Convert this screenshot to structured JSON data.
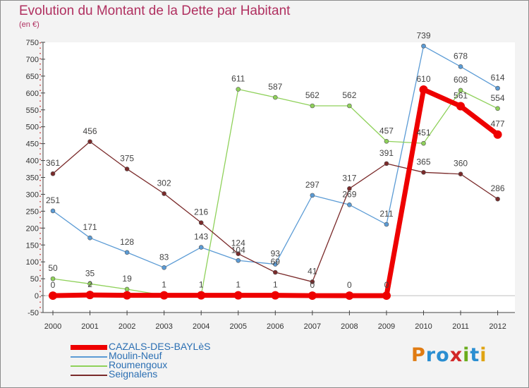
{
  "title": "Evolution du Montant de la Dette par Habitant",
  "subtitle": "(en €)",
  "logo": {
    "text": "Proxiti",
    "letter_colors": [
      "#e07b12",
      "#2a8ed1",
      "#2a8ed1",
      "#d22828",
      "#6aac1c",
      "#2a8ed1",
      "#e0a412"
    ]
  },
  "chart_data": {
    "type": "line",
    "title": "Evolution du Montant de la Dette par Habitant",
    "ylabel": "(en €)",
    "xlabel": "",
    "x": [
      "2000",
      "2001",
      "2002",
      "2003",
      "2004",
      "2005",
      "2006",
      "2007",
      "2008",
      "2009",
      "2010",
      "2011",
      "2012"
    ],
    "ylim": [
      -50,
      750
    ],
    "yticks": [
      -50,
      0,
      50,
      100,
      150,
      200,
      250,
      300,
      350,
      400,
      450,
      500,
      550,
      600,
      650,
      700,
      750
    ],
    "grid": false,
    "legend_position": "bottom-left",
    "series": [
      {
        "name": "CAZALS-DES-BAYLèS",
        "color": "#ee0000",
        "emphasis": true,
        "values": [
          0,
          2,
          1,
          1,
          1,
          1,
          1,
          0,
          0,
          0,
          610,
          561,
          477
        ],
        "labels": [
          "0",
          "2",
          "",
          "1",
          "1",
          "1",
          "1",
          "0",
          "0",
          "0",
          "610",
          "561",
          "477"
        ]
      },
      {
        "name": "Moulin-Neuf",
        "color": "#5b9bd5",
        "values": [
          251,
          171,
          128,
          83,
          143,
          104,
          93,
          297,
          269,
          211,
          739,
          678,
          614
        ],
        "labels": [
          "251",
          "171",
          "128",
          "83",
          "143",
          "104",
          "93",
          "297",
          "269",
          "211",
          "739",
          "678",
          "614"
        ]
      },
      {
        "name": "Roumengoux",
        "color": "#8fd15a",
        "values": [
          50,
          35,
          19,
          1,
          1,
          611,
          587,
          562,
          562,
          457,
          451,
          608,
          554
        ],
        "labels": [
          "50",
          "35",
          "19",
          "",
          "",
          "611",
          "587",
          "562",
          "562",
          "457",
          "451",
          "608",
          "554"
        ]
      },
      {
        "name": "Seignalens",
        "color": "#7a2a2a",
        "values": [
          361,
          456,
          375,
          302,
          216,
          124,
          69,
          41,
          317,
          391,
          365,
          360,
          286
        ],
        "labels": [
          "361",
          "456",
          "375",
          "302",
          "216",
          "124",
          "69",
          "41",
          "317",
          "391",
          "365",
          "360",
          "286"
        ]
      }
    ]
  }
}
